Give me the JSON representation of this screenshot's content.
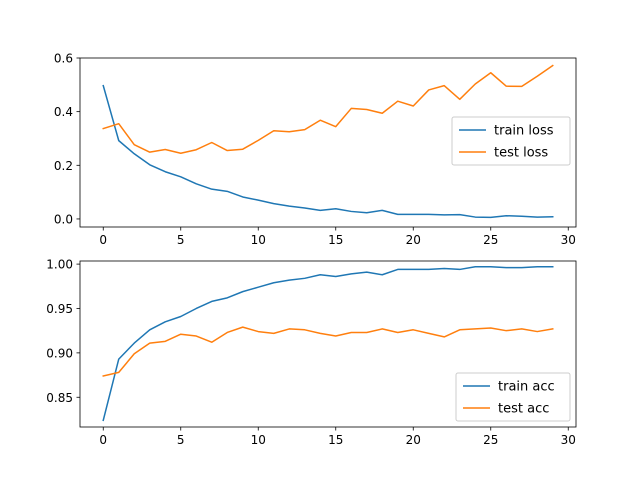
{
  "colors": {
    "train": "#1f77b4",
    "test": "#ff7f0e"
  },
  "chart_data": [
    {
      "type": "line",
      "xlim": [
        -1.5,
        30.5
      ],
      "ylim": [
        -0.03,
        0.6
      ],
      "xticks": [
        0,
        5,
        10,
        15,
        20,
        25,
        30
      ],
      "yticks": [
        0.0,
        0.2,
        0.4,
        0.6
      ],
      "ytick_labels": [
        "0.0",
        "0.2",
        "0.4",
        "0.6"
      ],
      "legend_position": "center-right",
      "grid": false,
      "x": [
        0,
        1,
        2,
        3,
        4,
        5,
        6,
        7,
        8,
        9,
        10,
        11,
        12,
        13,
        14,
        15,
        16,
        17,
        18,
        19,
        20,
        21,
        22,
        23,
        24,
        25,
        26,
        27,
        28,
        29
      ],
      "series": [
        {
          "name": "train loss",
          "color": "#1f77b4",
          "values": [
            0.497,
            0.292,
            0.243,
            0.202,
            0.176,
            0.157,
            0.131,
            0.111,
            0.103,
            0.082,
            0.07,
            0.057,
            0.048,
            0.041,
            0.032,
            0.038,
            0.028,
            0.023,
            0.032,
            0.017,
            0.017,
            0.017,
            0.015,
            0.016,
            0.007,
            0.006,
            0.012,
            0.01,
            0.007,
            0.008
          ]
        },
        {
          "name": "test loss",
          "color": "#ff7f0e",
          "values": [
            0.337,
            0.355,
            0.277,
            0.249,
            0.259,
            0.245,
            0.258,
            0.285,
            0.255,
            0.26,
            0.293,
            0.329,
            0.325,
            0.333,
            0.368,
            0.344,
            0.412,
            0.408,
            0.394,
            0.439,
            0.421,
            0.481,
            0.497,
            0.446,
            0.503,
            0.545,
            0.495,
            0.494,
            0.532,
            0.572
          ]
        }
      ]
    },
    {
      "type": "line",
      "xlim": [
        -1.5,
        30.5
      ],
      "ylim": [
        0.8165,
        1.0035
      ],
      "xticks": [
        0,
        5,
        10,
        15,
        20,
        25,
        30
      ],
      "yticks": [
        0.85,
        0.9,
        0.95,
        1.0
      ],
      "ytick_labels": [
        "0.85",
        "0.90",
        "0.95",
        "1.00"
      ],
      "legend_position": "lower-right",
      "grid": false,
      "x": [
        0,
        1,
        2,
        3,
        4,
        5,
        6,
        7,
        8,
        9,
        10,
        11,
        12,
        13,
        14,
        15,
        16,
        17,
        18,
        19,
        20,
        21,
        22,
        23,
        24,
        25,
        26,
        27,
        28,
        29
      ],
      "series": [
        {
          "name": "train acc",
          "color": "#1f77b4",
          "values": [
            0.824,
            0.893,
            0.911,
            0.926,
            0.935,
            0.941,
            0.95,
            0.958,
            0.962,
            0.969,
            0.974,
            0.979,
            0.982,
            0.984,
            0.988,
            0.986,
            0.989,
            0.991,
            0.988,
            0.994,
            0.994,
            0.994,
            0.995,
            0.994,
            0.997,
            0.997,
            0.996,
            0.996,
            0.997,
            0.997
          ]
        },
        {
          "name": "test acc",
          "color": "#ff7f0e",
          "values": [
            0.874,
            0.878,
            0.899,
            0.911,
            0.913,
            0.921,
            0.919,
            0.912,
            0.923,
            0.929,
            0.924,
            0.922,
            0.927,
            0.926,
            0.922,
            0.919,
            0.923,
            0.923,
            0.927,
            0.923,
            0.926,
            0.922,
            0.918,
            0.926,
            0.927,
            0.928,
            0.925,
            0.927,
            0.924,
            0.927
          ]
        }
      ]
    }
  ]
}
